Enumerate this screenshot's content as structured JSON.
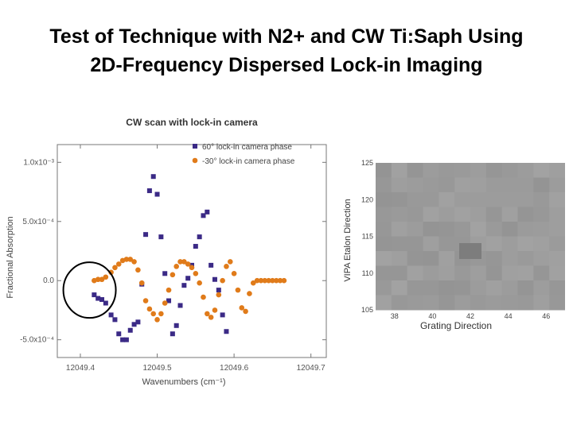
{
  "slide": {
    "title_line1": "Test of Technique with N2+ and CW Ti:Saph Using",
    "title_line2": "2D-Frequency Dispersed Lock-in Imaging"
  },
  "chart_data": [
    {
      "type": "scatter",
      "title": "CW scan with lock-in camera",
      "xlabel": "Wavenumbers (cm⁻¹)",
      "ylabel": "Fractional Absorption",
      "xlim": [
        12049.37,
        12049.72
      ],
      "ylim": [
        -0.00065,
        0.00115
      ],
      "x_ticks": [
        12049.4,
        12049.5,
        12049.6,
        12049.7
      ],
      "x_tick_labels": [
        "12049.4",
        "12049.5",
        "12049.6",
        "12049.7"
      ],
      "y_ticks": [
        0.001,
        0.0005,
        0.0,
        -0.0005
      ],
      "y_tick_labels": [
        "1.0x10⁻³",
        "5.0x10⁻⁴",
        "0.0",
        "-5.0x10⁻⁴"
      ],
      "grid": false,
      "legend_position": "top-right",
      "annotation": "circle around first points near x = 12049.41",
      "series": [
        {
          "name": "60° lock-in camera phase",
          "color": "#3b2a86",
          "marker": "square",
          "x": [
            12049.418,
            12049.423,
            12049.428,
            12049.433,
            12049.44,
            12049.445,
            12049.45,
            12049.455,
            12049.46,
            12049.465,
            12049.47,
            12049.475,
            12049.48,
            12049.485,
            12049.49,
            12049.495,
            12049.5,
            12049.505,
            12049.51,
            12049.515,
            12049.52,
            12049.525,
            12049.53,
            12049.535,
            12049.54,
            12049.545,
            12049.55,
            12049.555,
            12049.56,
            12049.565,
            12049.57,
            12049.575,
            12049.58,
            12049.585,
            12049.59
          ],
          "y": [
            -0.00012,
            -0.00015,
            -0.00016,
            -0.00019,
            -0.00029,
            -0.00033,
            -0.00045,
            -0.0005,
            -0.0005,
            -0.00042,
            -0.00037,
            -0.00035,
            -3e-05,
            0.00039,
            0.00076,
            0.00088,
            0.00073,
            0.00037,
            6e-05,
            -0.00017,
            -0.00045,
            -0.00038,
            -0.00021,
            -4e-05,
            2e-05,
            0.00013,
            0.00029,
            0.00037,
            0.00055,
            0.00058,
            0.00013,
            1e-05,
            -8e-05,
            -0.00029,
            -0.00043
          ]
        },
        {
          "name": "-30° lock-in camera phase",
          "color": "#e07b1a",
          "marker": "circle",
          "x": [
            12049.418,
            12049.423,
            12049.428,
            12049.433,
            12049.44,
            12049.445,
            12049.45,
            12049.455,
            12049.46,
            12049.465,
            12049.47,
            12049.475,
            12049.48,
            12049.485,
            12049.49,
            12049.495,
            12049.5,
            12049.505,
            12049.51,
            12049.515,
            12049.52,
            12049.525,
            12049.53,
            12049.535,
            12049.54,
            12049.545,
            12049.55,
            12049.555,
            12049.56,
            12049.565,
            12049.57,
            12049.575,
            12049.58,
            12049.585,
            12049.59,
            12049.595,
            12049.6,
            12049.605,
            12049.61,
            12049.615,
            12049.62,
            12049.625,
            12049.63,
            12049.635,
            12049.64,
            12049.645,
            12049.65,
            12049.655,
            12049.66,
            12049.665
          ],
          "y": [
            0.0,
            1e-05,
            1e-05,
            3e-05,
            7e-05,
            0.00011,
            0.00014,
            0.00017,
            0.00018,
            0.00018,
            0.00016,
            9e-05,
            -2e-05,
            -0.00017,
            -0.00024,
            -0.00028,
            -0.00033,
            -0.00028,
            -0.00019,
            -8e-05,
            5e-05,
            0.00012,
            0.00016,
            0.00016,
            0.00014,
            0.00011,
            6e-05,
            -2e-05,
            -0.00014,
            -0.00028,
            -0.00031,
            -0.00025,
            -0.00012,
            0.0,
            0.00012,
            0.00016,
            6e-05,
            -8e-05,
            -0.00023,
            -0.00026,
            -0.00011,
            -2e-05,
            0.0,
            0.0,
            0.0,
            0.0,
            0.0,
            0.0,
            0.0,
            0.0
          ]
        }
      ]
    },
    {
      "type": "heatmap",
      "xlabel": "Grating Direction",
      "ylabel": "VIPA Etalon Direction",
      "xlim": [
        37,
        47
      ],
      "ylim": [
        105,
        125
      ],
      "x_ticks": [
        38,
        40,
        42,
        44,
        46
      ],
      "y_ticks": [
        105,
        110,
        115,
        120,
        125
      ],
      "colormap": "grayscale",
      "peak": {
        "x": 42,
        "y": 113
      }
    }
  ]
}
